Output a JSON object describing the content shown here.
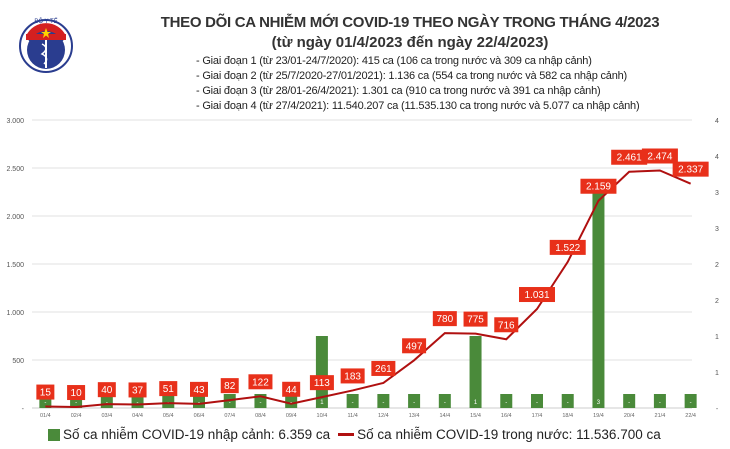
{
  "header": {
    "title": "THEO DÕI CA NHIỄM MỚI COVID-19 THEO NGÀY TRONG THÁNG 4/2023",
    "subtitle": "(từ ngày 01/4/2023 đến ngày 22/4/2023)",
    "logo_text": "BỘ Y TẾ",
    "logo_subtext": "MINISTRY OF HEALTH"
  },
  "stages": [
    "- Giai đoạn 1 (từ 23/01-24/7/2020): 415 ca (106 ca trong nước và 309 ca nhập cảnh)",
    "- Giai đoạn 2 (từ 25/7/2020-27/01/2021): 1.136 ca (554 ca trong nước và 582 ca nhập cảnh)",
    "- Giai đoạn 3 (từ 28/01-26/4/2021): 1.301 ca (910 ca trong nước và 391 ca nhập cảnh)",
    "- Giai đoạn 4 (từ 27/4/2021): 11.540.207 ca (11.535.130 ca trong nước và 5.077 ca nhập cảnh)"
  ],
  "legend": {
    "bar": "Số ca nhiễm COVID-19 nhập cảnh: 6.359 ca",
    "line": "Số ca nhiễm COVID-19 trong nước: 11.536.700 ca"
  },
  "colors": {
    "bar": "#4a8a3a",
    "line": "#b01010",
    "label_bg": "#e8301a"
  },
  "chart_data": {
    "type": "bar+line",
    "categories": [
      "01/4",
      "02/4",
      "03/4",
      "04/4",
      "05/4",
      "06/4",
      "07/4",
      "08/4",
      "09/4",
      "10/4",
      "11/4",
      "12/4",
      "13/4",
      "14/4",
      "15/4",
      "16/4",
      "17/4",
      "18/4",
      "19/4",
      "20/4",
      "21/4",
      "22/4"
    ],
    "series": [
      {
        "name": "Số ca nhiễm COVID-19 nhập cảnh",
        "type": "bar",
        "axis": "right",
        "values": [
          0,
          0,
          0,
          0,
          0,
          0,
          0,
          0,
          0,
          1,
          0,
          0,
          0,
          0,
          1,
          0,
          0,
          0,
          3,
          0,
          0,
          0
        ],
        "labels": [
          "-",
          "-",
          "-",
          "-",
          "-",
          "-",
          "-",
          "-",
          "-",
          "1",
          "-",
          "-",
          "-",
          "-",
          "1",
          "-",
          "-",
          "-",
          "3",
          "-",
          "-",
          "-"
        ]
      },
      {
        "name": "Số ca nhiễm COVID-19 trong nước",
        "type": "line",
        "axis": "left",
        "values": [
          15,
          10,
          40,
          37,
          51,
          43,
          82,
          122,
          44,
          113,
          183,
          261,
          497,
          780,
          775,
          716,
          1031,
          1522,
          2159,
          2461,
          2474,
          2337
        ],
        "labels": [
          "15",
          "10",
          "40",
          "37",
          "51",
          "43",
          "82",
          "122",
          "44",
          "113",
          "183",
          "261",
          "497",
          "780",
          "775",
          "716",
          "1.031",
          "1.522",
          "2.159",
          "2.461",
          "2.474",
          "2.337"
        ]
      }
    ],
    "left_axis": {
      "ylim": [
        0,
        3000
      ],
      "ticks": [
        0,
        500,
        1000,
        1500,
        2000,
        2500,
        3000
      ],
      "tick_labels": [
        "-",
        "500",
        "1.000",
        "1.500",
        "2.000",
        "2.500",
        "3.000"
      ]
    },
    "right_axis": {
      "ylim": [
        0,
        4
      ],
      "ticks": [
        0,
        0.5,
        1,
        1.5,
        2,
        2.5,
        3,
        3.5,
        4
      ],
      "tick_labels": [
        "-",
        "1",
        "1",
        "2",
        "2",
        "3",
        "3",
        "4",
        "4"
      ]
    },
    "grid": true,
    "legend_position": "bottom"
  }
}
